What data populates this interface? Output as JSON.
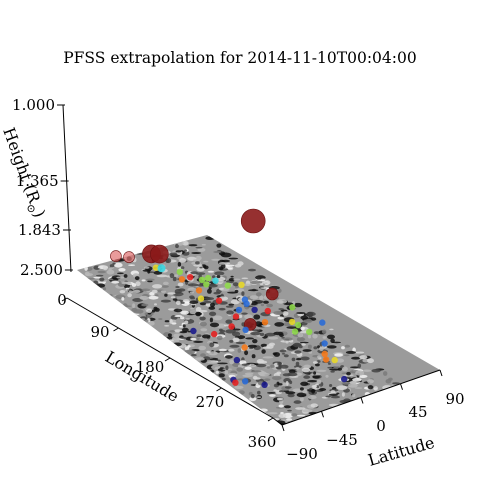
{
  "chart_data": {
    "type": "scatter",
    "title": "PFSS extrapolation for 2014-11-10T00:04:00",
    "xlabel": "Longitude",
    "ylabel": "Latitude",
    "zlabel": "Height (R",
    "zlabel_sub": "⊙",
    "zlabel_close": ")",
    "xlim": [
      0,
      360
    ],
    "ylim": [
      -90,
      90
    ],
    "zlim": [
      1.0,
      2.5
    ],
    "x_ticks": [
      "0",
      "90",
      "180",
      "270",
      "360"
    ],
    "y_ticks": [
      "−90",
      "−45",
      "0",
      "45",
      "90"
    ],
    "z_ticks": [
      "1.000",
      "1.365",
      "1.843",
      "2.500"
    ],
    "surface": "grayscale magnetogram on the base plane",
    "colors": {
      "dark_red": "#8b1a1a",
      "red": "#e32222",
      "orange": "#f57a1c",
      "yellow": "#e8d82a",
      "green": "#8ed84a",
      "cyan": "#3ad6e0",
      "blue": "#2a6bd6",
      "navy": "#1c1c8c",
      "pink": "#e07070"
    },
    "points": [
      {
        "lon": 246,
        "lat": -40,
        "h": 2.32,
        "c": "dark_red"
      },
      {
        "lon": 62,
        "lat": -85,
        "h": 1.36,
        "c": "pink"
      },
      {
        "lon": 66,
        "lat": -70,
        "h": 1.34,
        "c": "pink"
      },
      {
        "lon": 52,
        "lat": -28,
        "h": 1.24,
        "c": "dark_red"
      },
      {
        "lon": 56,
        "lat": -20,
        "h": 1.24,
        "c": "dark_red"
      },
      {
        "lon": 85,
        "lat": -40,
        "h": 1.26,
        "c": "cyan"
      },
      {
        "lon": 150,
        "lat": 62,
        "h": 1.1,
        "c": "dark_red"
      },
      {
        "lon": 40,
        "lat": -12,
        "h": 1.04,
        "c": "yellow"
      },
      {
        "lon": 60,
        "lat": 5,
        "h": 1.05,
        "c": "green"
      },
      {
        "lon": 70,
        "lat": 0,
        "h": 1.03,
        "c": "orange"
      },
      {
        "lon": 72,
        "lat": 10,
        "h": 1.04,
        "c": "red"
      },
      {
        "lon": 80,
        "lat": 20,
        "h": 1.03,
        "c": "green"
      },
      {
        "lon": 78,
        "lat": 30,
        "h": 1.02,
        "c": "green"
      },
      {
        "lon": 86,
        "lat": 34,
        "h": 1.02,
        "c": "cyan"
      },
      {
        "lon": 90,
        "lat": 18,
        "h": 1.03,
        "c": "green"
      },
      {
        "lon": 95,
        "lat": 4,
        "h": 1.02,
        "c": "orange"
      },
      {
        "lon": 100,
        "lat": 40,
        "h": 1.02,
        "c": "green"
      },
      {
        "lon": 105,
        "lat": 55,
        "h": 1.02,
        "c": "yellow"
      },
      {
        "lon": 110,
        "lat": -5,
        "h": 1.02,
        "c": "yellow"
      },
      {
        "lon": 120,
        "lat": 12,
        "h": 1.01,
        "c": "red"
      },
      {
        "lon": 130,
        "lat": 40,
        "h": 1.01,
        "c": "blue"
      },
      {
        "lon": 138,
        "lat": 36,
        "h": 1.01,
        "c": "blue"
      },
      {
        "lon": 145,
        "lat": 20,
        "h": 1.01,
        "c": "blue"
      },
      {
        "lon": 152,
        "lat": 36,
        "h": 1.01,
        "c": "navy"
      },
      {
        "lon": 155,
        "lat": 8,
        "h": 1.01,
        "c": "red"
      },
      {
        "lon": 160,
        "lat": 48,
        "h": 1.01,
        "c": "red"
      },
      {
        "lon": 165,
        "lat": 78,
        "h": 1.01,
        "c": "green"
      },
      {
        "lon": 170,
        "lat": -10,
        "h": 1.01,
        "c": "red"
      },
      {
        "lon": 175,
        "lat": 12,
        "h": 1.01,
        "c": "dark_red"
      },
      {
        "lon": 178,
        "lat": 30,
        "h": 1.01,
        "c": "orange"
      },
      {
        "lon": 182,
        "lat": 0,
        "h": 1.01,
        "c": "blue"
      },
      {
        "lon": 190,
        "lat": 58,
        "h": 1.01,
        "c": "yellow"
      },
      {
        "lon": 198,
        "lat": 60,
        "h": 1.01,
        "c": "green"
      },
      {
        "lon": 205,
        "lat": 88,
        "h": 1.01,
        "c": "blue"
      },
      {
        "lon": 208,
        "lat": 48,
        "h": 1.01,
        "c": "green"
      },
      {
        "lon": 215,
        "lat": 62,
        "h": 1.01,
        "c": "green"
      },
      {
        "lon": 160,
        "lat": -55,
        "h": 1.01,
        "c": "navy"
      },
      {
        "lon": 175,
        "lat": -38,
        "h": 1.01,
        "c": "red"
      },
      {
        "lon": 212,
        "lat": -25,
        "h": 1.01,
        "c": "orange"
      },
      {
        "lon": 230,
        "lat": -50,
        "h": 1.01,
        "c": "navy"
      },
      {
        "lon": 262,
        "lat": -80,
        "h": 1.01,
        "c": "navy"
      },
      {
        "lon": 270,
        "lat": -70,
        "h": 1.01,
        "c": "blue"
      },
      {
        "lon": 268,
        "lat": -82,
        "h": 1.01,
        "c": "red"
      },
      {
        "lon": 285,
        "lat": -55,
        "h": 1.01,
        "c": "navy"
      },
      {
        "lon": 242,
        "lat": 62,
        "h": 1.01,
        "c": "blue"
      },
      {
        "lon": 260,
        "lat": 48,
        "h": 1.01,
        "c": "orange"
      },
      {
        "lon": 270,
        "lat": 42,
        "h": 1.01,
        "c": "orange"
      },
      {
        "lon": 275,
        "lat": 50,
        "h": 1.01,
        "c": "yellow"
      },
      {
        "lon": 312,
        "lat": 34,
        "h": 1.01,
        "c": "navy"
      }
    ]
  }
}
